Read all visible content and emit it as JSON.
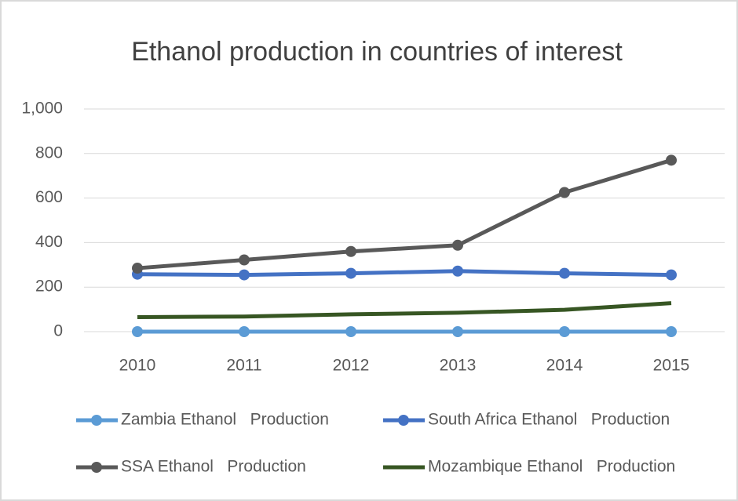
{
  "chart_data": {
    "type": "line",
    "title": "Ethanol production in countries of interest",
    "categories": [
      "2010",
      "2011",
      "2012",
      "2013",
      "2014",
      "2015"
    ],
    "series": [
      {
        "name": "Zambia Ethanol   Production",
        "color": "#5b9bd5",
        "marker": true,
        "values": [
          0,
          0,
          0,
          0,
          0,
          0
        ]
      },
      {
        "name": "South Africa Ethanol   Production",
        "color": "#4472c4",
        "marker": true,
        "values": [
          258,
          255,
          262,
          272,
          262,
          255
        ]
      },
      {
        "name": "SSA Ethanol   Production",
        "color": "#595959",
        "marker": true,
        "values": [
          285,
          322,
          360,
          388,
          625,
          770
        ]
      },
      {
        "name": "Mozambique Ethanol   Production",
        "color": "#375623",
        "marker": false,
        "values": [
          65,
          68,
          78,
          85,
          98,
          128
        ]
      }
    ],
    "ylim": [
      0,
      1000
    ],
    "yticks": [
      0,
      200,
      400,
      600,
      800,
      {
        "value": 1000,
        "label": "1,000"
      }
    ],
    "grid": true
  }
}
